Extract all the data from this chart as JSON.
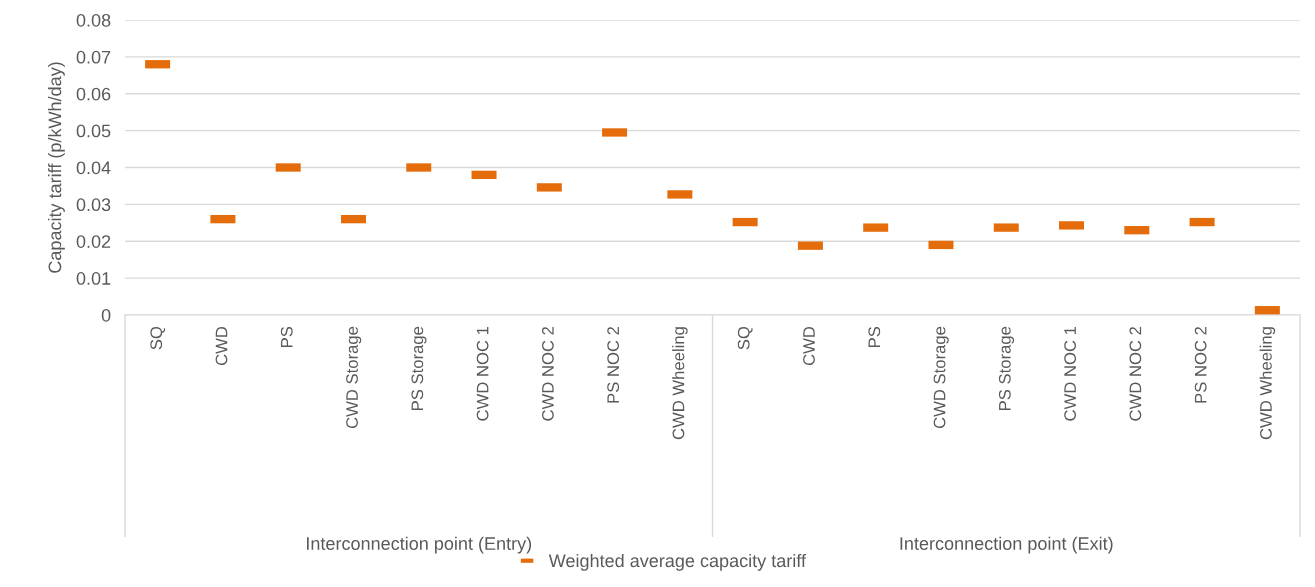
{
  "chart_data": {
    "type": "scatter",
    "ylabel": "Capacity tariff (p/kWh/day)",
    "categories": [
      "SQ",
      "CWD",
      "PS",
      "CWD Storage",
      "PS Storage",
      "CWD NOC 1",
      "CWD NOC 2",
      "PS NOC 2",
      "CWD Wheeling",
      "SQ",
      "CWD",
      "PS",
      "CWD Storage",
      "PS Storage",
      "CWD NOC 1",
      "CWD NOC 2",
      "PS NOC 2",
      "CWD Wheeling"
    ],
    "series": [
      {
        "name": "Weighted average capacity tariff",
        "color": "#e46c0a",
        "values": [
          0.068,
          0.026,
          0.04,
          0.026,
          0.04,
          0.038,
          0.0346,
          0.0495,
          0.0327,
          0.0252,
          0.0188,
          0.0237,
          0.019,
          0.0237,
          0.0243,
          0.023,
          0.0252,
          0.0013
        ]
      }
    ],
    "ylim": [
      0,
      0.08
    ],
    "yticks": [
      {
        "value": 0,
        "label": "0"
      },
      0.01,
      0.02,
      0.03,
      0.04,
      0.05,
      0.06,
      0.07,
      0.08
    ],
    "grid": "y",
    "legend": "bottom",
    "annotations": [
      "Interconnection point (Entry)",
      "Interconnection point (Exit)"
    ]
  }
}
